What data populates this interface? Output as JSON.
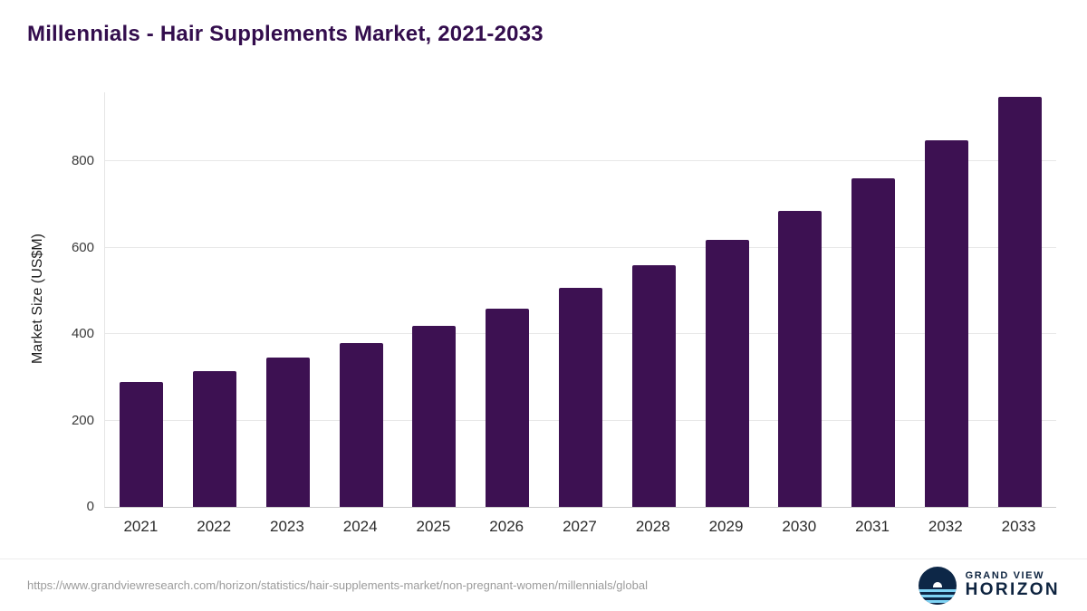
{
  "title": "Millennials - Hair Supplements Market, 2021-2033",
  "chart_data": {
    "type": "bar",
    "title": "Millennials - Hair Supplements Market, 2021-2033",
    "categories": [
      "2021",
      "2022",
      "2023",
      "2024",
      "2025",
      "2026",
      "2027",
      "2028",
      "2029",
      "2030",
      "2031",
      "2032",
      "2033"
    ],
    "values": [
      290,
      315,
      345,
      380,
      420,
      460,
      508,
      560,
      618,
      685,
      760,
      848,
      950
    ],
    "xlabel": "",
    "ylabel": "Market Size (US$M)",
    "ylim": [
      0,
      960
    ],
    "yticks": [
      0,
      200,
      400,
      600,
      800
    ],
    "grid": true,
    "legend_position": "none",
    "bar_color": "#3d1152"
  },
  "colors": {
    "title": "#330d4d",
    "bar": "#3d1152",
    "gridline": "#e7e7e7",
    "axis_text": "#2b2b2b",
    "footer_text": "#9b9b9b",
    "logo_navy": "#0e2440",
    "logo_light_blue": "#7fd4f5"
  },
  "footer": {
    "source_url": "https://www.grandviewresearch.com/horizon/statistics/hair-supplements-market/non-pregnant-women/millennials/global",
    "logo": {
      "line1": "GRAND VIEW",
      "line2": "HORIZON"
    }
  }
}
